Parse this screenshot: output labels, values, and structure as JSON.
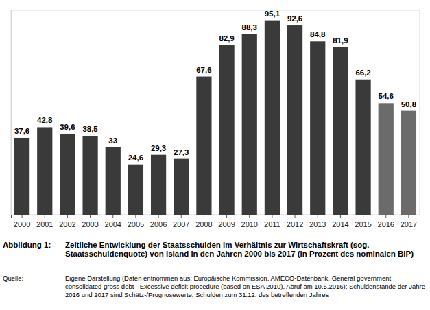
{
  "chart_data": {
    "type": "bar",
    "figure_label": "Abbildung 1:",
    "title": "Zeitliche Entwicklung der Staatsschulden im Verhältnis zur Wirtschaftskraft (sog. Staatsschuldenquote) von Island in den Jahren 2000 bis 2017 (in Prozent des nominalen BIP)",
    "source_label": "Quelle:",
    "source": "Eigene Darstellung (Daten entnommen aus: Europäische Kommission, AMECO-Datenbank, General government consolidated gross debt - Excessive deficit procedure (based on ESA 2010), Abruf am 10.5.2016); Schuldenstände der Jahre 2016 und 2017 sind Schätz-/Prognosewerte; Schulden zum 31.12. des betreffenden Jahres",
    "categories": [
      "2000",
      "2001",
      "2002",
      "2003",
      "2004",
      "2005",
      "2006",
      "2007",
      "2008",
      "2009",
      "2010",
      "2011",
      "2012",
      "2013",
      "2014",
      "2015",
      "2016",
      "2017"
    ],
    "values": [
      37.6,
      42.8,
      39.6,
      38.5,
      33,
      24.6,
      29.3,
      27.3,
      67.6,
      82.9,
      88.3,
      95.1,
      92.6,
      84.8,
      81.9,
      66.2,
      54.6,
      50.8
    ],
    "value_labels": [
      "37,6",
      "42,8",
      "39,6",
      "38,5",
      "33",
      "24,6",
      "29,3",
      "27,3",
      "67,6",
      "82,9",
      "88,3",
      "95,1",
      "92,6",
      "84,8",
      "81,9",
      "66,2",
      "54,6",
      "50,8"
    ],
    "colors": [
      "#3a3a3a",
      "#3a3a3a",
      "#3a3a3a",
      "#3a3a3a",
      "#3a3a3a",
      "#3a3a3a",
      "#3a3a3a",
      "#3a3a3a",
      "#3a3a3a",
      "#3a3a3a",
      "#3a3a3a",
      "#3a3a3a",
      "#3a3a3a",
      "#3a3a3a",
      "#3a3a3a",
      "#3a3a3a",
      "#6b6b6b",
      "#6b6b6b"
    ],
    "ylim": [
      0,
      100
    ],
    "data_labels": true,
    "tick_labels": "x",
    "grid": false
  }
}
